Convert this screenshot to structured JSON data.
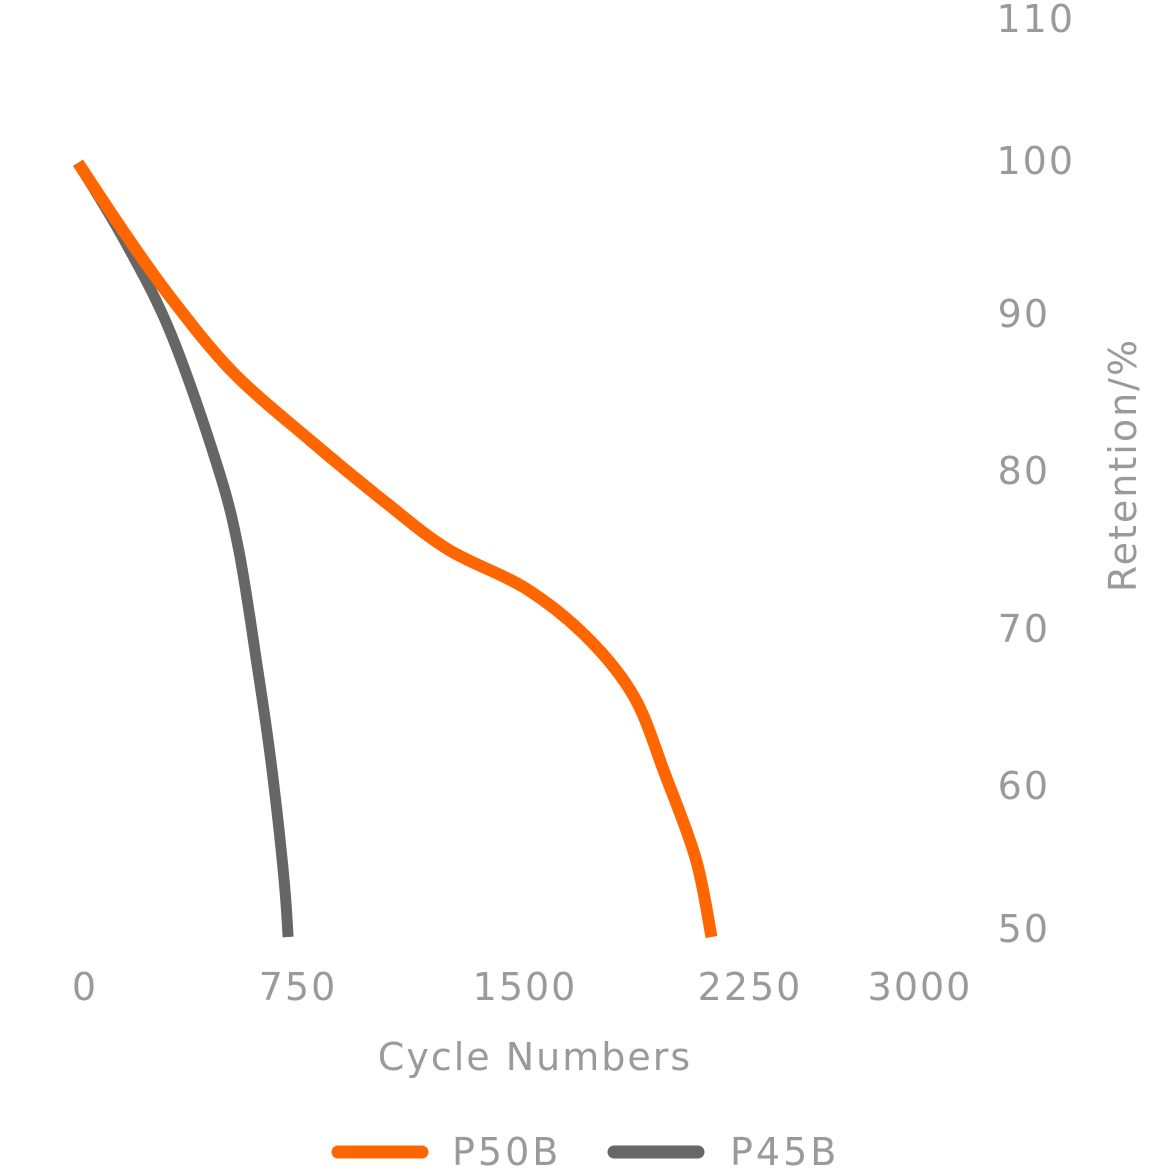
{
  "chart_data": {
    "type": "line",
    "title": "",
    "xlabel": "Cycle Numbers",
    "ylabel": "Retention/%",
    "xlim": [
      0,
      3000
    ],
    "ylim": [
      50,
      110
    ],
    "x_ticks": [
      "0",
      "750",
      "1500",
      "2250",
      "3000"
    ],
    "y_ticks": [
      "110",
      "100",
      "90",
      "80",
      "70",
      "60",
      "50"
    ],
    "y_axis_side": "right",
    "grid": false,
    "legend_position": "bottom",
    "series": [
      {
        "name": "P50B",
        "color": "#ff6600",
        "x": [
          0,
          150,
          300,
          500,
          750,
          1000,
          1200,
          1450,
          1650,
          1800,
          1900,
          2000,
          2050
        ],
        "y": [
          100,
          95.5,
          91.3,
          86.5,
          82.1,
          78.0,
          75.0,
          72.5,
          69.3,
          65.5,
          60.5,
          55.0,
          50.0
        ]
      },
      {
        "name": "P45B",
        "color": "#666666",
        "x": [
          0,
          150,
          300,
          450,
          520,
          580,
          620,
          650,
          670,
          680
        ],
        "y": [
          100,
          95.0,
          89.0,
          80.5,
          75.0,
          67.5,
          62.0,
          57.0,
          53.0,
          50.0
        ]
      }
    ]
  }
}
